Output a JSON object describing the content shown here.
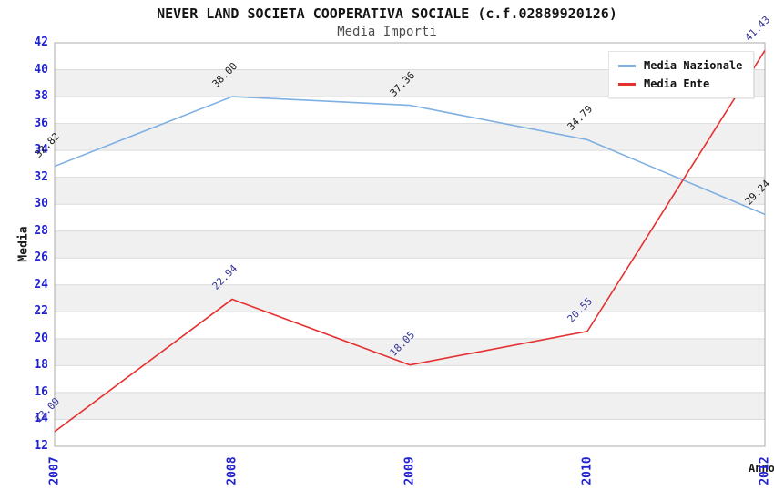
{
  "chart_data": {
    "type": "line",
    "title": "NEVER LAND SOCIETA COOPERATIVA SOCIALE (c.f.02889920126)",
    "subtitle": "Media Importi",
    "xlabel": "Anno",
    "ylabel": "Media",
    "categories": [
      "2007",
      "2008",
      "2009",
      "2010",
      "2012"
    ],
    "series": [
      {
        "name": "Media Nazionale",
        "color": "#7FB0E3",
        "label_color": "#1a1a1a",
        "values": [
          32.82,
          38.0,
          37.36,
          34.79,
          29.24
        ]
      },
      {
        "name": "Media Ente",
        "color": "#E53030",
        "label_color": "#333399",
        "values": [
          13.09,
          22.94,
          18.05,
          20.55,
          41.43
        ]
      }
    ],
    "ylim": [
      12,
      42
    ],
    "ytick_step": 2,
    "value_decimals": 2,
    "legend_position": "top-right",
    "grid": "horizontal-bands",
    "colors": {
      "tick_label": "#2222CC",
      "axis_label": "#1a1a1a",
      "band": "#F0F0F0",
      "gridline": "#DCDCDC",
      "border": "#ABABAB",
      "background": "#FFFFFF"
    }
  }
}
